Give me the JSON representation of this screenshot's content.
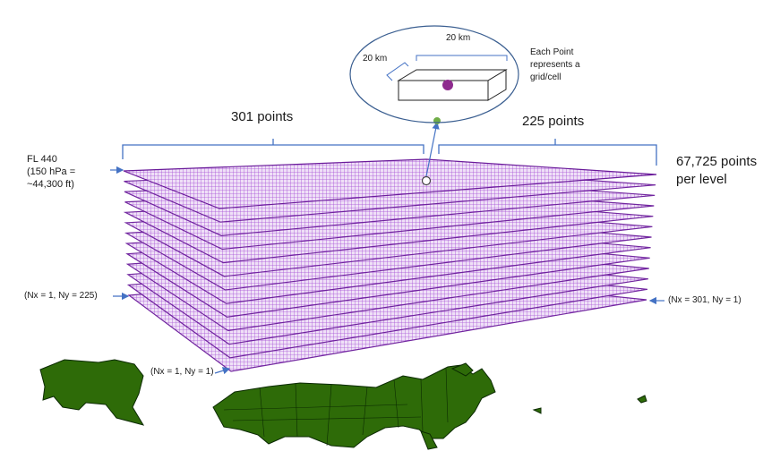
{
  "callout": {
    "length_label": "20 km",
    "width_label": "20 km",
    "note_lines": [
      "Each Point",
      "represents a",
      "grid/cell"
    ]
  },
  "top_labels": {
    "x_points": "301 points",
    "y_points": "225 points",
    "per_level_line1": "67,725 points",
    "per_level_line2": "per level"
  },
  "level_label": {
    "line1": "FL 440",
    "line2": "(150 hPa =",
    "line3": "~44,300 ft)"
  },
  "corner_labels": {
    "left": "(Nx = 1, Ny = 225)",
    "right": "(Nx = 301, Ny = 1)",
    "front": "(Nx = 1, Ny = 1)"
  },
  "colors": {
    "grid": "#a64fd6",
    "grid_edge": "#6a1b9a",
    "dot": "#8e2a8e",
    "map_fill": "#2e6b08",
    "ellipse": "#3b5f91",
    "bracket": "#4472c4",
    "arrow": "#4472c4",
    "green_dot": "#70ad47"
  },
  "layer_count": 13
}
